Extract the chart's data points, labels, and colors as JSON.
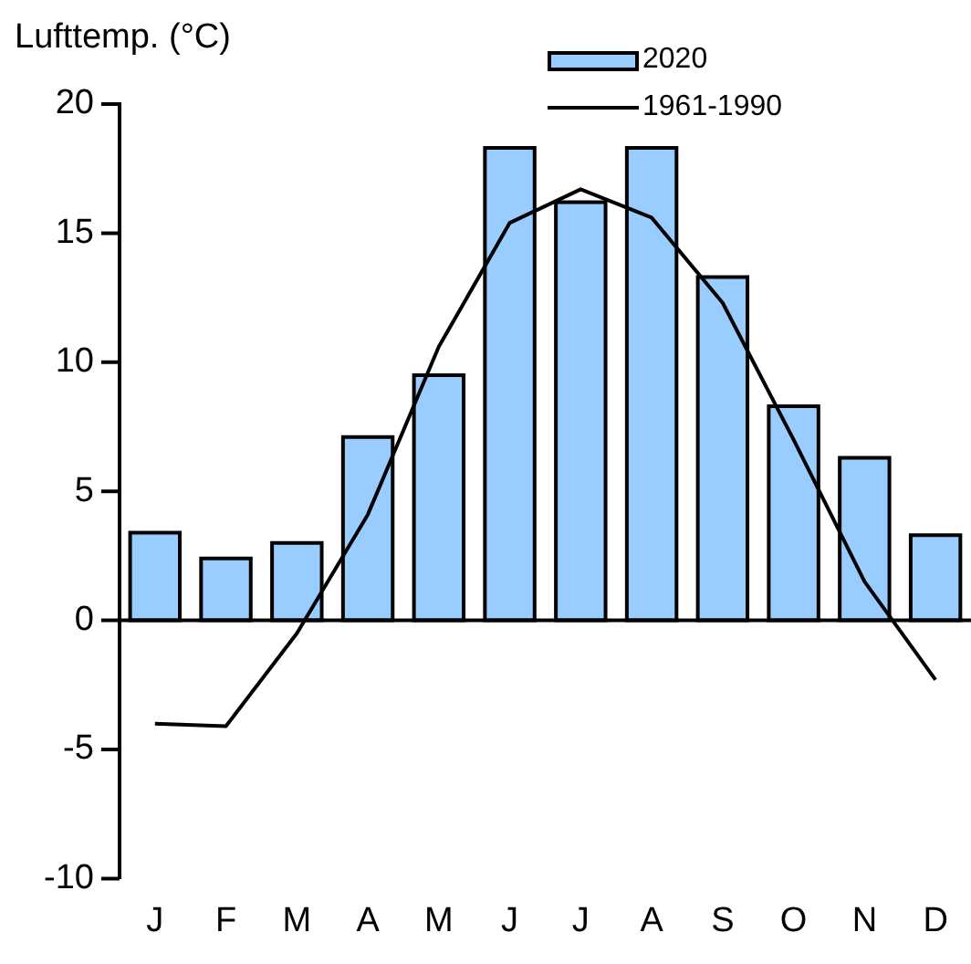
{
  "chart_data": {
    "type": "bar",
    "ylabel": "Lufttemp. (°C)",
    "categories": [
      "J",
      "F",
      "M",
      "A",
      "M",
      "J",
      "J",
      "A",
      "S",
      "O",
      "N",
      "D"
    ],
    "series": [
      {
        "name": "2020",
        "color": "#99ccff",
        "values": [
          3.4,
          2.4,
          3.0,
          7.1,
          9.5,
          18.3,
          16.2,
          18.3,
          13.3,
          8.3,
          6.3,
          3.3
        ]
      },
      {
        "name": "1961-1990",
        "type": "line",
        "color": "#000000",
        "values": [
          -4.0,
          -4.1,
          -0.5,
          4.1,
          10.6,
          15.4,
          16.7,
          15.6,
          12.3,
          7.0,
          1.5,
          -2.3
        ]
      }
    ],
    "ylim": [
      -10,
      20
    ],
    "yticks": [
      -10,
      -5,
      0,
      5,
      10,
      15,
      20
    ],
    "ref_lines": [
      {
        "axis": "y",
        "value": 0,
        "color": "#000000"
      }
    ],
    "grid": false,
    "legend": "top",
    "marker": "none",
    "line_style": "solid"
  }
}
